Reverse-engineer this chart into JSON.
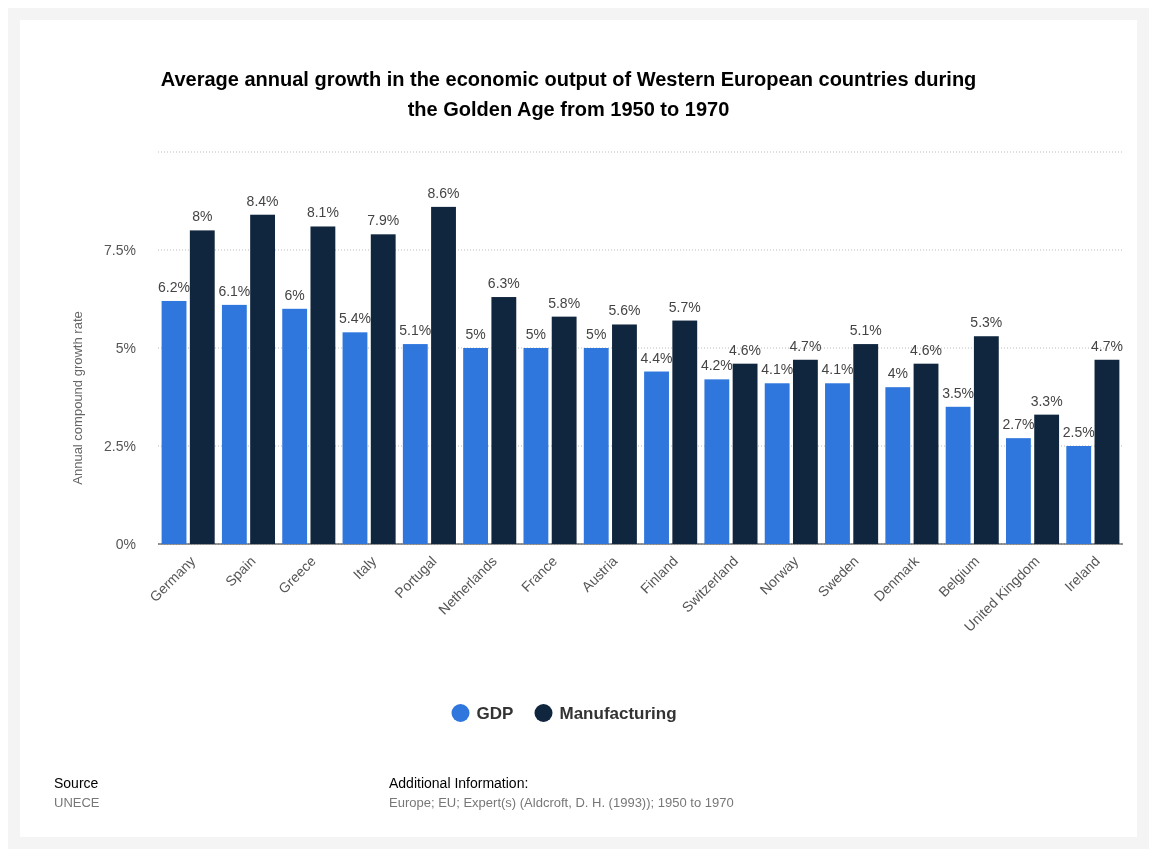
{
  "chart_data": {
    "type": "bar",
    "title": "Average annual growth in the economic output of Western European countries during the Golden Age from 1950 to 1970",
    "ylabel": "Annual compound growth rate",
    "categories": [
      "Germany",
      "Spain",
      "Greece",
      "Italy",
      "Portugal",
      "Netherlands",
      "France",
      "Austria",
      "Finland",
      "Switzerland",
      "Norway",
      "Sweden",
      "Denmark",
      "Belgium",
      "United Kingdom",
      "Ireland"
    ],
    "series": [
      {
        "name": "GDP",
        "color": "#2f76dd",
        "values": [
          6.2,
          6.1,
          6,
          5.4,
          5.1,
          5,
          5,
          5,
          4.4,
          4.2,
          4.1,
          4.1,
          4,
          3.5,
          2.7,
          2.5
        ],
        "value_labels": [
          "6.2%",
          "6.1%",
          "6%",
          "5.4%",
          "5.1%",
          "5%",
          "5%",
          "5%",
          "4.4%",
          "4.2%",
          "4.1%",
          "4.1%",
          "4%",
          "3.5%",
          "2.7%",
          "2.5%"
        ]
      },
      {
        "name": "Manufacturing",
        "color": "#10263e",
        "values": [
          8,
          8.4,
          8.1,
          7.9,
          8.6,
          6.3,
          5.8,
          5.6,
          5.7,
          4.6,
          4.7,
          5.1,
          4.6,
          5.3,
          3.3,
          4.7
        ],
        "value_labels": [
          "8%",
          "8.4%",
          "8.1%",
          "7.9%",
          "8.6%",
          "6.3%",
          "5.8%",
          "5.6%",
          "5.7%",
          "4.6%",
          "4.7%",
          "5.1%",
          "4.6%",
          "5.3%",
          "3.3%",
          "4.7%"
        ]
      }
    ],
    "ylim": [
      0,
      10
    ],
    "yticks": [
      {
        "value": 0,
        "label": "0%"
      },
      {
        "value": 2.5,
        "label": "2.5%"
      },
      {
        "value": 5,
        "label": "5%"
      },
      {
        "value": 7.5,
        "label": "7.5%"
      },
      {
        "value": 10,
        "label": null
      }
    ],
    "grid": "y",
    "legend": "bottom",
    "annotations": [
      "Source",
      "UNECE",
      "Additional Information:",
      "Europe; EU; Expert(s) (Aldcroft, D. H. (1993)); 1950 to 1970"
    ]
  }
}
